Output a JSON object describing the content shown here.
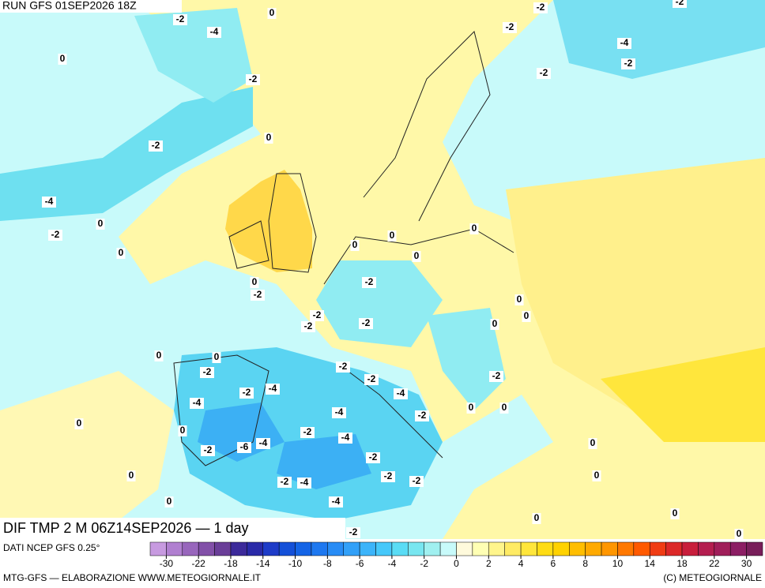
{
  "header": {
    "run": "RUN GFS 01SEP2026 18Z",
    "field": "DIF TMP 2 M 06Z14SEP2026 — 1 day"
  },
  "footer": {
    "source": "DATI NCEP GFS 0.25°",
    "credit": "MTG-GFS — ELABORAZIONE WWW.METEOGIORNALE.IT",
    "copyright": "(C) METEOGIORNALE"
  },
  "contour_labels": [
    -2,
    0,
    -4,
    -2,
    -2,
    -2,
    -4,
    -2,
    0,
    -2,
    -2,
    0,
    -2,
    -4,
    0,
    -2,
    0,
    0,
    0,
    0,
    0,
    0,
    -2,
    -2,
    0,
    -2,
    0,
    -2,
    -2,
    0,
    0,
    0,
    -2,
    -2,
    -2,
    -2,
    -4,
    -2,
    -4,
    -4,
    0,
    0,
    -4,
    -2,
    0,
    0,
    -2,
    -4,
    -6,
    -4,
    -2,
    0,
    -2,
    0,
    -2,
    -2,
    0,
    -2,
    -4,
    0,
    -4,
    0,
    0,
    -2,
    0
  ],
  "colorbar": {
    "ticks": [
      -30,
      -22,
      -18,
      -14,
      -10,
      -8,
      -6,
      -4,
      -2,
      0,
      2,
      4,
      6,
      8,
      10,
      14,
      18,
      22,
      30
    ],
    "colors": [
      "#c79ae0",
      "#b07fd0",
      "#9866bc",
      "#8250a8",
      "#6a3e98",
      "#3c2a9a",
      "#2a2aa8",
      "#1e3cc8",
      "#1450d8",
      "#1464e6",
      "#1e78f0",
      "#288cf5",
      "#32a0f8",
      "#3cb4fa",
      "#46c8fa",
      "#5adcf5",
      "#78e6f0",
      "#a0f0f0",
      "#c8fafa",
      "#fffadc",
      "#ffffb4",
      "#fff58c",
      "#ffeb64",
      "#ffe63c",
      "#ffdc14",
      "#ffd200",
      "#ffbe00",
      "#ffaa00",
      "#ff9600",
      "#ff7800",
      "#ff5a00",
      "#f03c14",
      "#dc2828",
      "#c81e3c",
      "#b41e50",
      "#a01e5a",
      "#8c1e64",
      "#781e5a"
    ]
  }
}
